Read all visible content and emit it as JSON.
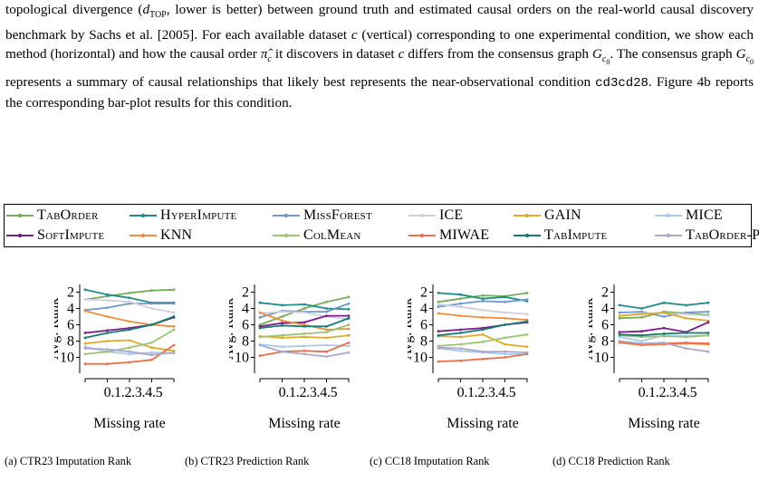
{
  "paragraph": {
    "l1_pre": "topological divergence (",
    "l1_d": "d",
    "l1_sub": "TOP",
    "l1_post": ", lower is better) between ground truth and estimated causal orders",
    "l2_pre": "on the real-world causal discovery benchmark by Sachs et al. [2005]. For each available dataset ",
    "l2_c": "c",
    "l3_pre": "(vertical) corresponding to one experimental condition, we show each method (horizontal) and how",
    "l4_pre": "the causal order ",
    "l4_pi": "π̂",
    "l4_pisub": "c",
    "l4_mid": " it discovers in dataset ",
    "l4_c": "c",
    "l4_mid2": " differs from the consensus graph ",
    "l4_G": "G",
    "l4_Gsub": "c",
    "l4_Gsub0": "0",
    "l4_post": ". The consensus graph",
    "l5_G": "G",
    "l5_Gsub": "c",
    "l5_Gsub0": "0",
    "l5_post": " represents a summary of causal relationships that likely best represents the near-observational",
    "l6_pre": "condition ",
    "l6_code": "cd3cd28",
    "l6_post": ". Figure 4b reports the corresponding bar-plot results for this condition."
  },
  "legend": [
    {
      "label": "TabOrder",
      "color": "#77ac5a"
    },
    {
      "label": "HyperImpute",
      "color": "#1f8c8c"
    },
    {
      "label": "MissForest",
      "color": "#6f98c8"
    },
    {
      "label": "ICE",
      "color": "#cfcfde"
    },
    {
      "label": "GAIN",
      "color": "#e1aa2a"
    },
    {
      "label": "MICE",
      "color": "#aac9e6"
    },
    {
      "label": "SoftImpute",
      "color": "#7c1c8a"
    },
    {
      "label": "KNN",
      "color": "#f08c3c"
    },
    {
      "label": "ColMean",
      "color": "#9cc472"
    },
    {
      "label": "MIWAE",
      "color": "#ec6e4a"
    },
    {
      "label": "TabImpute",
      "color": "#137a74"
    },
    {
      "label": "TabOrder-Pre",
      "color": "#a9a9ce"
    }
  ],
  "chart_data": [
    {
      "type": "line",
      "ylabel": "Avg. Rank",
      "xlabel": "Missing rate",
      "x": [
        0.1,
        0.2,
        0.3,
        0.4,
        0.5
      ],
      "xtick_labels": [
        "0.1",
        "0.2",
        "0.3",
        "0.4",
        "0.5"
      ],
      "yticks": [
        2,
        4,
        6,
        8,
        10
      ],
      "ylim": [
        1.5,
        11.5
      ],
      "y_inverted": true,
      "series": [
        {
          "name": "TabOrder",
          "values": [
            2.9,
            2.5,
            2.1,
            1.8,
            1.7
          ]
        },
        {
          "name": "HyperImpute",
          "values": [
            1.7,
            2.3,
            2.7,
            3.3,
            3.3
          ]
        },
        {
          "name": "MissForest",
          "values": [
            4.2,
            3.9,
            3.4,
            3.4,
            3.4
          ]
        },
        {
          "name": "ICE",
          "values": [
            2.9,
            3.0,
            3.2,
            4.0,
            4.5
          ]
        },
        {
          "name": "GAIN",
          "values": [
            8.3,
            8.0,
            7.9,
            8.8,
            9.2
          ]
        },
        {
          "name": "MICE",
          "values": [
            8.7,
            9.3,
            9.6,
            9.4,
            9.5
          ]
        },
        {
          "name": "SoftImpute",
          "values": [
            7.0,
            6.7,
            6.4,
            6.0,
            5.1
          ]
        },
        {
          "name": "KNN",
          "values": [
            4.3,
            5.0,
            5.6,
            6.0,
            6.2
          ]
        },
        {
          "name": "ColMean",
          "values": [
            9.6,
            9.3,
            8.8,
            8.2,
            6.6
          ]
        },
        {
          "name": "MIWAE",
          "values": [
            10.8,
            10.8,
            10.6,
            10.3,
            8.5
          ]
        },
        {
          "name": "TabImpute",
          "values": [
            7.6,
            7.0,
            6.6,
            6.0,
            5.0
          ]
        },
        {
          "name": "TabOrder-Pre",
          "values": [
            8.9,
            9.0,
            9.3,
            9.7,
            9.4
          ]
        }
      ],
      "caption": "(a)  CTR23  Imputation Rank"
    },
    {
      "type": "line",
      "ylabel": "Avg. Rank",
      "xlabel": "Missing rate",
      "x": [
        0.1,
        0.2,
        0.3,
        0.4,
        0.5
      ],
      "xtick_labels": [
        "0.1",
        "0.2",
        "0.3",
        "0.4",
        "0.5"
      ],
      "yticks": [
        2,
        4,
        6,
        8,
        10
      ],
      "ylim": [
        1.5,
        11.5
      ],
      "y_inverted": true,
      "series": [
        {
          "name": "TabOrder",
          "values": [
            6.0,
            5.0,
            4.0,
            3.2,
            2.6
          ]
        },
        {
          "name": "HyperImpute",
          "values": [
            3.3,
            3.6,
            3.5,
            4.0,
            4.1
          ]
        },
        {
          "name": "MissForest",
          "values": [
            5.1,
            4.3,
            4.4,
            4.4,
            3.4
          ]
        },
        {
          "name": "ICE",
          "values": [
            4.6,
            4.4,
            4.5,
            5.0,
            5.3
          ]
        },
        {
          "name": "GAIN",
          "values": [
            7.4,
            7.6,
            7.5,
            7.6,
            7.3
          ]
        },
        {
          "name": "MICE",
          "values": [
            8.4,
            8.7,
            8.6,
            8.5,
            8.6
          ]
        },
        {
          "name": "SoftImpute",
          "values": [
            6.2,
            5.8,
            5.7,
            4.9,
            4.9
          ]
        },
        {
          "name": "KNN",
          "values": [
            4.5,
            5.5,
            6.0,
            6.6,
            6.5
          ]
        },
        {
          "name": "ColMean",
          "values": [
            7.5,
            7.3,
            7.1,
            6.9,
            6.0
          ]
        },
        {
          "name": "MIWAE",
          "values": [
            9.8,
            9.3,
            9.2,
            9.3,
            8.2
          ]
        },
        {
          "name": "TabImpute",
          "values": [
            6.4,
            6.1,
            6.2,
            6.2,
            5.2
          ]
        },
        {
          "name": "TabOrder-Pre",
          "values": [
            8.5,
            9.3,
            9.6,
            9.9,
            9.4
          ]
        }
      ],
      "caption": "(b)  CTR23  Prediction Rank"
    },
    {
      "type": "line",
      "ylabel": "Avg. Rank",
      "xlabel": "Missing rate",
      "x": [
        0.1,
        0.2,
        0.3,
        0.4,
        0.5
      ],
      "xtick_labels": [
        "0.1",
        "0.2",
        "0.3",
        "0.4",
        "0.5"
      ],
      "yticks": [
        2,
        4,
        6,
        8,
        10
      ],
      "ylim": [
        1.5,
        11.5
      ],
      "y_inverted": true,
      "series": [
        {
          "name": "TabOrder",
          "values": [
            3.2,
            2.8,
            2.4,
            2.5,
            2.1
          ]
        },
        {
          "name": "HyperImpute",
          "values": [
            2.1,
            2.3,
            2.8,
            2.6,
            3.1
          ]
        },
        {
          "name": "MissForest",
          "values": [
            3.8,
            3.4,
            3.1,
            3.2,
            2.9
          ]
        },
        {
          "name": "ICE",
          "values": [
            3.5,
            3.8,
            4.2,
            4.5,
            4.7
          ]
        },
        {
          "name": "GAIN",
          "values": [
            7.4,
            7.5,
            7.2,
            8.4,
            8.7
          ]
        },
        {
          "name": "MICE",
          "values": [
            8.9,
            9.2,
            9.4,
            9.6,
            9.6
          ]
        },
        {
          "name": "SoftImpute",
          "values": [
            6.8,
            6.6,
            6.4,
            6.0,
            5.7
          ]
        },
        {
          "name": "KNN",
          "values": [
            4.6,
            4.9,
            5.1,
            5.2,
            5.4
          ]
        },
        {
          "name": "ColMean",
          "values": [
            8.6,
            8.4,
            8.1,
            7.6,
            7.2
          ]
        },
        {
          "name": "MIWAE",
          "values": [
            10.5,
            10.4,
            10.2,
            10.0,
            9.6
          ]
        },
        {
          "name": "TabImpute",
          "values": [
            7.3,
            7.0,
            6.6,
            6.0,
            5.6
          ]
        },
        {
          "name": "TabOrder-Pre",
          "values": [
            8.8,
            8.9,
            9.3,
            9.3,
            9.4
          ]
        }
      ],
      "caption": "(c) CC18 Imputation Rank"
    },
    {
      "type": "line",
      "ylabel": "Avg. Rank",
      "xlabel": "Missing rate",
      "x": [
        0.1,
        0.2,
        0.3,
        0.4,
        0.5
      ],
      "xtick_labels": [
        "0.1",
        "0.2",
        "0.3",
        "0.4",
        "0.5"
      ],
      "yticks": [
        2,
        4,
        6,
        8,
        10
      ],
      "ylim": [
        1.5,
        11.5
      ],
      "y_inverted": true,
      "series": [
        {
          "name": "TabOrder",
          "values": [
            5.2,
            5.1,
            4.4,
            4.6,
            4.8
          ]
        },
        {
          "name": "HyperImpute",
          "values": [
            3.6,
            4.0,
            3.3,
            3.6,
            3.3
          ]
        },
        {
          "name": "MissForest",
          "values": [
            4.5,
            4.4,
            5.0,
            4.5,
            4.4
          ]
        },
        {
          "name": "ICE",
          "values": [
            4.9,
            4.6,
            4.6,
            4.7,
            4.9
          ]
        },
        {
          "name": "GAIN",
          "values": [
            4.9,
            4.7,
            4.5,
            5.2,
            5.5
          ]
        },
        {
          "name": "MICE",
          "values": [
            7.5,
            8.0,
            7.3,
            7.4,
            7.3
          ]
        },
        {
          "name": "SoftImpute",
          "values": [
            6.9,
            6.8,
            6.4,
            6.9,
            5.7
          ]
        },
        {
          "name": "KNN",
          "values": [
            8.2,
            8.5,
            8.4,
            8.3,
            8.4
          ]
        },
        {
          "name": "ColMean",
          "values": [
            7.3,
            7.5,
            7.4,
            7.5,
            7.3
          ]
        },
        {
          "name": "MIWAE",
          "values": [
            8.1,
            8.4,
            8.3,
            8.2,
            8.3
          ]
        },
        {
          "name": "TabImpute",
          "values": [
            7.2,
            7.3,
            7.1,
            7.0,
            7.0
          ]
        },
        {
          "name": "TabOrder-Pre",
          "values": [
            8.0,
            8.3,
            8.2,
            8.9,
            9.3
          ]
        }
      ],
      "caption": "(d) CC18 Prediction Rank"
    }
  ]
}
